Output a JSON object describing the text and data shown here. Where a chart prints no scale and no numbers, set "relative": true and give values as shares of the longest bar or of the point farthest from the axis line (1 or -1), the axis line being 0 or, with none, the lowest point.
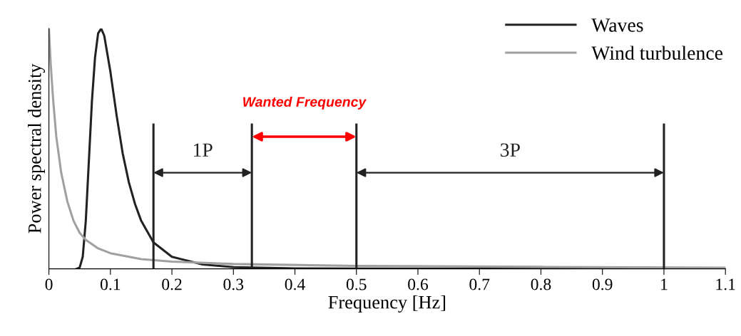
{
  "chart_data": {
    "type": "line",
    "relative": true,
    "xlabel": "Frequency [Hz]",
    "ylabel": "Power spectral density",
    "xlim": [
      0,
      1.1
    ],
    "xticks": [
      0,
      0.1,
      0.2,
      0.3,
      0.4,
      0.5,
      0.6,
      0.7,
      0.8,
      0.9,
      1,
      1.1
    ],
    "legend": "top right",
    "grid": false,
    "series": [
      {
        "name": "Waves",
        "color": "#222222",
        "x": [
          0.045,
          0.05,
          0.055,
          0.06,
          0.065,
          0.07,
          0.075,
          0.08,
          0.085,
          0.09,
          0.1,
          0.11,
          0.12,
          0.13,
          0.14,
          0.15,
          0.17,
          0.2,
          0.25,
          0.3,
          0.4,
          0.5,
          0.7,
          1.1
        ],
        "values": [
          0,
          0.005,
          0.05,
          0.2,
          0.45,
          0.7,
          0.88,
          0.98,
          1.0,
          0.97,
          0.82,
          0.64,
          0.48,
          0.36,
          0.27,
          0.2,
          0.11,
          0.05,
          0.018,
          0.007,
          0.002,
          0.001,
          0,
          0
        ]
      },
      {
        "name": "Wind turbulence",
        "color": "#a0a0a0",
        "x": [
          0,
          0.003,
          0.007,
          0.012,
          0.02,
          0.03,
          0.04,
          0.05,
          0.06,
          0.08,
          0.1,
          0.15,
          0.2,
          0.3,
          0.5,
          0.8,
          1.1
        ],
        "values": [
          1.0,
          0.85,
          0.7,
          0.55,
          0.4,
          0.28,
          0.2,
          0.15,
          0.12,
          0.085,
          0.065,
          0.04,
          0.03,
          0.02,
          0.012,
          0.008,
          0.005
        ]
      }
    ],
    "ref_lines": [
      {
        "axis": "x",
        "value": 0.17,
        "color": "#222222"
      },
      {
        "axis": "x",
        "value": 0.33,
        "color": "#222222"
      },
      {
        "axis": "x",
        "value": 0.5,
        "color": "#222222"
      },
      {
        "axis": "x",
        "value": 1,
        "color": "#222222"
      }
    ],
    "annotations": [
      "1P",
      "Wanted Frequency",
      "3P"
    ]
  }
}
